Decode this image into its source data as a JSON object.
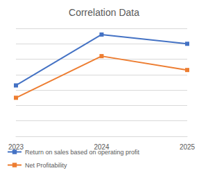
{
  "chart_data": {
    "type": "line",
    "title": "Correlation Data",
    "categories": [
      "2023",
      "2024",
      "2025"
    ],
    "series": [
      {
        "name": "Return on sales based on operating profit",
        "color": "#4472c4",
        "values": [
          3.3,
          6.6,
          6.0
        ]
      },
      {
        "name": "Net Profitability",
        "color": "#ed7d31",
        "values": [
          2.5,
          5.2,
          4.3
        ]
      }
    ],
    "ylim": [
      0,
      7
    ],
    "yticks": [
      0,
      1,
      2,
      3,
      4,
      5,
      6,
      7
    ],
    "grid": true,
    "legend": "bottom",
    "marker": "square",
    "tick_labels": "x"
  }
}
